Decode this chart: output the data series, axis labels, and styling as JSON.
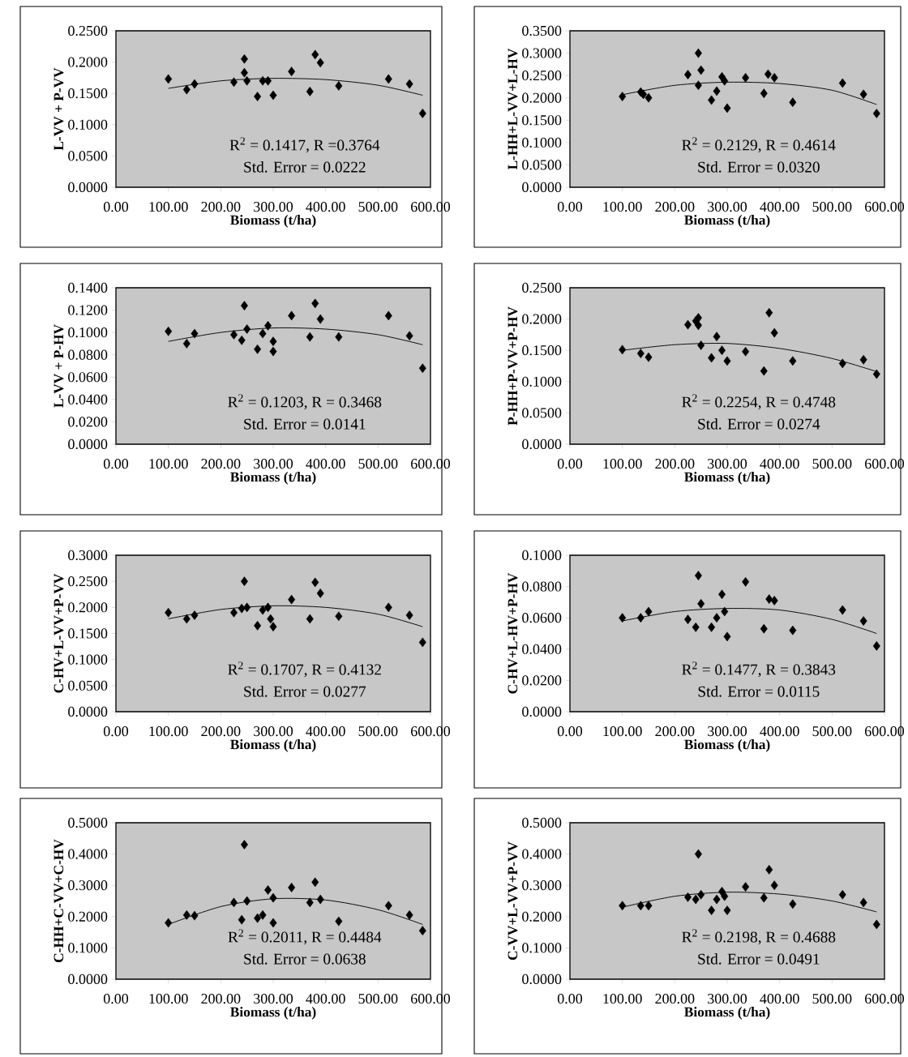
{
  "chart_data": [
    {
      "type": "scatter",
      "xlabel": "Biomass (t/ha)",
      "ylabel": "L-VV + P-VV",
      "xlim": [
        0,
        600
      ],
      "ylim": [
        0,
        0.25
      ],
      "xticks": [
        {
          "value": 0,
          "label": "0.00"
        },
        {
          "value": 100,
          "label": "100.00"
        },
        {
          "value": 200,
          "label": "200.00"
        },
        {
          "value": 300,
          "label": "300.00"
        },
        {
          "value": 400,
          "label": "400.00"
        },
        {
          "value": 500,
          "label": "500.00"
        },
        {
          "value": 600,
          "label": "600.00"
        }
      ],
      "yticks": [
        {
          "value": 0,
          "label": "0.0000"
        },
        {
          "value": 0.05,
          "label": "0.0500"
        },
        {
          "value": 0.1,
          "label": "0.1000"
        },
        {
          "value": 0.15,
          "label": "0.1500"
        },
        {
          "value": 0.2,
          "label": "0.2000"
        },
        {
          "value": 0.25,
          "label": "0.2500"
        }
      ],
      "grid": false,
      "series": [
        {
          "type": "scatter",
          "color": "#000000",
          "marker": "diamond",
          "x": [
            100,
            135,
            150,
            225,
            245,
            245,
            250,
            270,
            280,
            290,
            300,
            335,
            370,
            380,
            390,
            425,
            520,
            560,
            585
          ],
          "values": [
            0.173,
            0.156,
            0.165,
            0.168,
            0.205,
            0.183,
            0.17,
            0.145,
            0.17,
            0.17,
            0.147,
            0.185,
            0.153,
            0.212,
            0.199,
            0.162,
            0.173,
            0.165,
            0.118
          ]
        },
        {
          "type": "line",
          "color": "#000000",
          "marker": "none",
          "line_style": "solid",
          "x": [
            100,
            200,
            300,
            400,
            500,
            585
          ],
          "values": [
            0.158,
            0.17,
            0.174,
            0.172,
            0.163,
            0.147
          ]
        }
      ],
      "annotations": [
        "R$^{2}$ = 0.1417,  R =0.3764",
        "Std. Error = 0.0222"
      ]
    },
    {
      "type": "scatter",
      "xlabel": "Biomass (t/ha)",
      "ylabel": "L-HH+L-VV+L-HV",
      "xlim": [
        0,
        600
      ],
      "ylim": [
        0,
        0.35
      ],
      "xticks": [
        {
          "value": 0,
          "label": "0.00"
        },
        {
          "value": 100,
          "label": "100.00"
        },
        {
          "value": 200,
          "label": "200.00"
        },
        {
          "value": 300,
          "label": "300.00"
        },
        {
          "value": 400,
          "label": "400.00"
        },
        {
          "value": 500,
          "label": "500.00"
        },
        {
          "value": 600,
          "label": "600.00"
        }
      ],
      "yticks": [
        {
          "value": 0,
          "label": "0.0000"
        },
        {
          "value": 0.05,
          "label": "0.0500"
        },
        {
          "value": 0.1,
          "label": "0.1000"
        },
        {
          "value": 0.15,
          "label": "0.1500"
        },
        {
          "value": 0.2,
          "label": "0.2000"
        },
        {
          "value": 0.25,
          "label": "0.2500"
        },
        {
          "value": 0.3,
          "label": "0.3000"
        },
        {
          "value": 0.35,
          "label": "0.3500"
        }
      ],
      "grid": false,
      "series": [
        {
          "type": "scatter",
          "color": "#000000",
          "marker": "diamond",
          "x": [
            100,
            135,
            140,
            150,
            225,
            245,
            245,
            250,
            270,
            280,
            290,
            295,
            300,
            335,
            370,
            378,
            390,
            425,
            520,
            560,
            585
          ],
          "values": [
            0.203,
            0.213,
            0.208,
            0.2,
            0.252,
            0.228,
            0.3,
            0.262,
            0.195,
            0.215,
            0.247,
            0.238,
            0.177,
            0.245,
            0.21,
            0.253,
            0.245,
            0.19,
            0.233,
            0.208,
            0.165
          ]
        },
        {
          "type": "line",
          "color": "#000000",
          "marker": "none",
          "line_style": "solid",
          "x": [
            100,
            200,
            300,
            400,
            500,
            585
          ],
          "values": [
            0.207,
            0.228,
            0.235,
            0.232,
            0.217,
            0.185
          ]
        }
      ],
      "annotations": [
        "R$^{2}$ = 0.2129,  R = 0.4614",
        "Std. Error = 0.0320"
      ]
    },
    {
      "type": "scatter",
      "xlabel": "Biomass (t/ha)",
      "ylabel": "L-VV + P-HV",
      "xlim": [
        0,
        600
      ],
      "ylim": [
        0,
        0.14
      ],
      "xticks": [
        {
          "value": 0,
          "label": "0.00"
        },
        {
          "value": 100,
          "label": "100.00"
        },
        {
          "value": 200,
          "label": "200.00"
        },
        {
          "value": 300,
          "label": "300.00"
        },
        {
          "value": 400,
          "label": "400.00"
        },
        {
          "value": 500,
          "label": "500.00"
        },
        {
          "value": 600,
          "label": "600.00"
        }
      ],
      "yticks": [
        {
          "value": 0,
          "label": "0.0000"
        },
        {
          "value": 0.02,
          "label": "0.0200"
        },
        {
          "value": 0.04,
          "label": "0.0400"
        },
        {
          "value": 0.06,
          "label": "0.0600"
        },
        {
          "value": 0.08,
          "label": "0.0800"
        },
        {
          "value": 0.1,
          "label": "0.1000"
        },
        {
          "value": 0.12,
          "label": "0.1200"
        },
        {
          "value": 0.14,
          "label": "0.1400"
        }
      ],
      "grid": false,
      "series": [
        {
          "type": "scatter",
          "color": "#000000",
          "marker": "diamond",
          "x": [
            100,
            135,
            150,
            225,
            240,
            245,
            250,
            270,
            280,
            290,
            300,
            300,
            335,
            370,
            380,
            390,
            425,
            520,
            560,
            585
          ],
          "values": [
            0.101,
            0.09,
            0.099,
            0.098,
            0.093,
            0.124,
            0.103,
            0.085,
            0.099,
            0.106,
            0.092,
            0.083,
            0.115,
            0.096,
            0.126,
            0.112,
            0.096,
            0.115,
            0.097,
            0.068
          ]
        },
        {
          "type": "line",
          "color": "#000000",
          "marker": "none",
          "line_style": "solid",
          "x": [
            100,
            200,
            300,
            400,
            500,
            585
          ],
          "values": [
            0.092,
            0.1,
            0.104,
            0.103,
            0.098,
            0.089
          ]
        }
      ],
      "annotations": [
        "R$^{2}$ = 0.1203,  R = 0.3468",
        "Std. Error = 0.0141"
      ]
    },
    {
      "type": "scatter",
      "xlabel": "Biomass (t/ha)",
      "ylabel": "P-HH+P-VV+P-HV",
      "xlim": [
        0,
        600
      ],
      "ylim": [
        0,
        0.25
      ],
      "xticks": [
        {
          "value": 0,
          "label": "0.00"
        },
        {
          "value": 100,
          "label": "100.00"
        },
        {
          "value": 200,
          "label": "200.00"
        },
        {
          "value": 300,
          "label": "300.00"
        },
        {
          "value": 400,
          "label": "400.00"
        },
        {
          "value": 500,
          "label": "500.00"
        },
        {
          "value": 600,
          "label": "600.00"
        }
      ],
      "yticks": [
        {
          "value": 0,
          "label": "0.0000"
        },
        {
          "value": 0.05,
          "label": "0.0500"
        },
        {
          "value": 0.1,
          "label": "0.1000"
        },
        {
          "value": 0.15,
          "label": "0.1500"
        },
        {
          "value": 0.2,
          "label": "0.2000"
        },
        {
          "value": 0.25,
          "label": "0.2500"
        }
      ],
      "grid": false,
      "series": [
        {
          "type": "scatter",
          "color": "#000000",
          "marker": "diamond",
          "x": [
            100,
            135,
            150,
            225,
            240,
            245,
            245,
            250,
            270,
            280,
            290,
            300,
            335,
            370,
            380,
            390,
            425,
            520,
            560,
            585
          ],
          "values": [
            0.151,
            0.145,
            0.139,
            0.191,
            0.197,
            0.202,
            0.19,
            0.158,
            0.138,
            0.172,
            0.15,
            0.133,
            0.148,
            0.117,
            0.21,
            0.178,
            0.133,
            0.129,
            0.135,
            0.112
          ]
        },
        {
          "type": "line",
          "color": "#000000",
          "marker": "none",
          "line_style": "solid",
          "x": [
            100,
            200,
            300,
            400,
            500,
            585
          ],
          "values": [
            0.15,
            0.159,
            0.161,
            0.153,
            0.137,
            0.116
          ]
        }
      ],
      "annotations": [
        "R$^{2}$ = 0.2254,  R = 0.4748",
        "Std. Error = 0.0274"
      ]
    },
    {
      "type": "scatter",
      "xlabel": "Biomass (t/ha)",
      "ylabel": "C-HV+L-VV+P-VV",
      "xlim": [
        0,
        600
      ],
      "ylim": [
        0,
        0.3
      ],
      "xticks": [
        {
          "value": 0,
          "label": "0.00"
        },
        {
          "value": 100,
          "label": "100.00"
        },
        {
          "value": 200,
          "label": "200.00"
        },
        {
          "value": 300,
          "label": "300.00"
        },
        {
          "value": 400,
          "label": "400.00"
        },
        {
          "value": 500,
          "label": "500.00"
        },
        {
          "value": 600,
          "label": "600.00"
        }
      ],
      "yticks": [
        {
          "value": 0,
          "label": "0.0000"
        },
        {
          "value": 0.05,
          "label": "0.0500"
        },
        {
          "value": 0.1,
          "label": "0.1000"
        },
        {
          "value": 0.15,
          "label": "0.1500"
        },
        {
          "value": 0.2,
          "label": "0.2000"
        },
        {
          "value": 0.25,
          "label": "0.2500"
        },
        {
          "value": 0.3,
          "label": "0.3000"
        }
      ],
      "grid": false,
      "series": [
        {
          "type": "scatter",
          "color": "#000000",
          "marker": "diamond",
          "x": [
            100,
            135,
            150,
            225,
            240,
            245,
            250,
            270,
            280,
            290,
            295,
            300,
            335,
            370,
            380,
            390,
            425,
            520,
            560,
            585
          ],
          "values": [
            0.19,
            0.178,
            0.185,
            0.19,
            0.198,
            0.25,
            0.2,
            0.165,
            0.195,
            0.2,
            0.178,
            0.163,
            0.215,
            0.178,
            0.248,
            0.227,
            0.183,
            0.2,
            0.185,
            0.133
          ]
        },
        {
          "type": "line",
          "color": "#000000",
          "marker": "none",
          "line_style": "solid",
          "x": [
            100,
            200,
            300,
            400,
            500,
            585
          ],
          "values": [
            0.178,
            0.196,
            0.203,
            0.2,
            0.187,
            0.163
          ]
        }
      ],
      "annotations": [
        "R$^{2}$ = 0.1707,  R = 0.4132",
        "Std. Error = 0.0277"
      ]
    },
    {
      "type": "scatter",
      "xlabel": "Biomass (t/ha)",
      "ylabel": "C-HV+L-HV+P-HV",
      "xlim": [
        0,
        600
      ],
      "ylim": [
        0,
        0.1
      ],
      "xticks": [
        {
          "value": 0,
          "label": "0.00"
        },
        {
          "value": 100,
          "label": "100.00"
        },
        {
          "value": 200,
          "label": "200.00"
        },
        {
          "value": 300,
          "label": "300.00"
        },
        {
          "value": 400,
          "label": "400.00"
        },
        {
          "value": 500,
          "label": "500.00"
        },
        {
          "value": 600,
          "label": "600.00"
        }
      ],
      "yticks": [
        {
          "value": 0,
          "label": "0.0000"
        },
        {
          "value": 0.02,
          "label": "0.0200"
        },
        {
          "value": 0.04,
          "label": "0.0400"
        },
        {
          "value": 0.06,
          "label": "0.0600"
        },
        {
          "value": 0.08,
          "label": "0.0800"
        },
        {
          "value": 0.1,
          "label": "0.1000"
        }
      ],
      "grid": false,
      "series": [
        {
          "type": "scatter",
          "color": "#000000",
          "marker": "diamond",
          "x": [
            100,
            135,
            150,
            225,
            240,
            245,
            250,
            270,
            280,
            290,
            295,
            300,
            335,
            370,
            380,
            390,
            425,
            520,
            560,
            585
          ],
          "values": [
            0.06,
            0.06,
            0.064,
            0.059,
            0.054,
            0.087,
            0.069,
            0.054,
            0.06,
            0.075,
            0.064,
            0.048,
            0.083,
            0.053,
            0.072,
            0.071,
            0.052,
            0.065,
            0.058,
            0.042
          ]
        },
        {
          "type": "line",
          "color": "#000000",
          "marker": "none",
          "line_style": "solid",
          "x": [
            100,
            200,
            300,
            400,
            500,
            585
          ],
          "values": [
            0.058,
            0.064,
            0.066,
            0.065,
            0.059,
            0.05
          ]
        }
      ],
      "annotations": [
        "R$^{2}$ = 0.1477,  R = 0.3843",
        "Std. Error = 0.0115"
      ]
    },
    {
      "type": "scatter",
      "xlabel": "Biomass (t/ha)",
      "ylabel": "C-HH+C-VV+C-HV",
      "xlim": [
        0,
        600
      ],
      "ylim": [
        0,
        0.5
      ],
      "xticks": [
        {
          "value": 0,
          "label": "0.00"
        },
        {
          "value": 100,
          "label": "100.00"
        },
        {
          "value": 200,
          "label": "200.00"
        },
        {
          "value": 300,
          "label": "300.00"
        },
        {
          "value": 400,
          "label": "400.00"
        },
        {
          "value": 500,
          "label": "500.00"
        },
        {
          "value": 600,
          "label": "600.00"
        }
      ],
      "yticks": [
        {
          "value": 0,
          "label": "0.0000"
        },
        {
          "value": 0.1,
          "label": "0.1000"
        },
        {
          "value": 0.2,
          "label": "0.2000"
        },
        {
          "value": 0.3,
          "label": "0.3000"
        },
        {
          "value": 0.4,
          "label": "0.4000"
        },
        {
          "value": 0.5,
          "label": "0.5000"
        }
      ],
      "grid": false,
      "series": [
        {
          "type": "scatter",
          "color": "#000000",
          "marker": "diamond",
          "x": [
            100,
            135,
            150,
            225,
            240,
            245,
            250,
            270,
            280,
            290,
            300,
            300,
            335,
            370,
            380,
            390,
            425,
            520,
            560,
            585
          ],
          "values": [
            0.18,
            0.205,
            0.203,
            0.245,
            0.19,
            0.43,
            0.25,
            0.195,
            0.205,
            0.285,
            0.26,
            0.18,
            0.293,
            0.245,
            0.31,
            0.255,
            0.185,
            0.235,
            0.205,
            0.155
          ]
        },
        {
          "type": "line",
          "color": "#000000",
          "marker": "none",
          "line_style": "solid",
          "x": [
            100,
            200,
            300,
            400,
            500,
            585
          ],
          "values": [
            0.175,
            0.232,
            0.257,
            0.253,
            0.222,
            0.175
          ]
        }
      ],
      "annotations": [
        "R$^{2}$ = 0.2011,  R = 0.4484",
        "Std. Error = 0.0638"
      ]
    },
    {
      "type": "scatter",
      "xlabel": "Biomass (t/ha)",
      "ylabel": "C-VV+L-VV+P-VV",
      "xlim": [
        0,
        600
      ],
      "ylim": [
        0,
        0.5
      ],
      "xticks": [
        {
          "value": 0,
          "label": "0.00"
        },
        {
          "value": 100,
          "label": "100.00"
        },
        {
          "value": 200,
          "label": "200.00"
        },
        {
          "value": 300,
          "label": "300.00"
        },
        {
          "value": 400,
          "label": "400.00"
        },
        {
          "value": 500,
          "label": "500.00"
        },
        {
          "value": 600,
          "label": "600.00"
        }
      ],
      "yticks": [
        {
          "value": 0,
          "label": "0.0000"
        },
        {
          "value": 0.1,
          "label": "0.1000"
        },
        {
          "value": 0.2,
          "label": "0.2000"
        },
        {
          "value": 0.3,
          "label": "0.3000"
        },
        {
          "value": 0.4,
          "label": "0.4000"
        },
        {
          "value": 0.5,
          "label": "0.5000"
        }
      ],
      "grid": false,
      "series": [
        {
          "type": "scatter",
          "color": "#000000",
          "marker": "diamond",
          "x": [
            100,
            135,
            150,
            225,
            240,
            245,
            250,
            270,
            280,
            290,
            295,
            300,
            335,
            370,
            380,
            390,
            425,
            520,
            560,
            585
          ],
          "values": [
            0.235,
            0.235,
            0.235,
            0.262,
            0.255,
            0.4,
            0.27,
            0.22,
            0.255,
            0.28,
            0.265,
            0.22,
            0.295,
            0.26,
            0.35,
            0.3,
            0.24,
            0.27,
            0.245,
            0.175
          ]
        },
        {
          "type": "line",
          "color": "#000000",
          "marker": "none",
          "line_style": "solid",
          "x": [
            100,
            200,
            300,
            400,
            500,
            585
          ],
          "values": [
            0.23,
            0.265,
            0.278,
            0.272,
            0.25,
            0.215
          ]
        }
      ],
      "annotations": [
        "R$^{2}$ = 0.2198,  R = 0.4688",
        "Std. Error = 0.0491"
      ]
    }
  ]
}
